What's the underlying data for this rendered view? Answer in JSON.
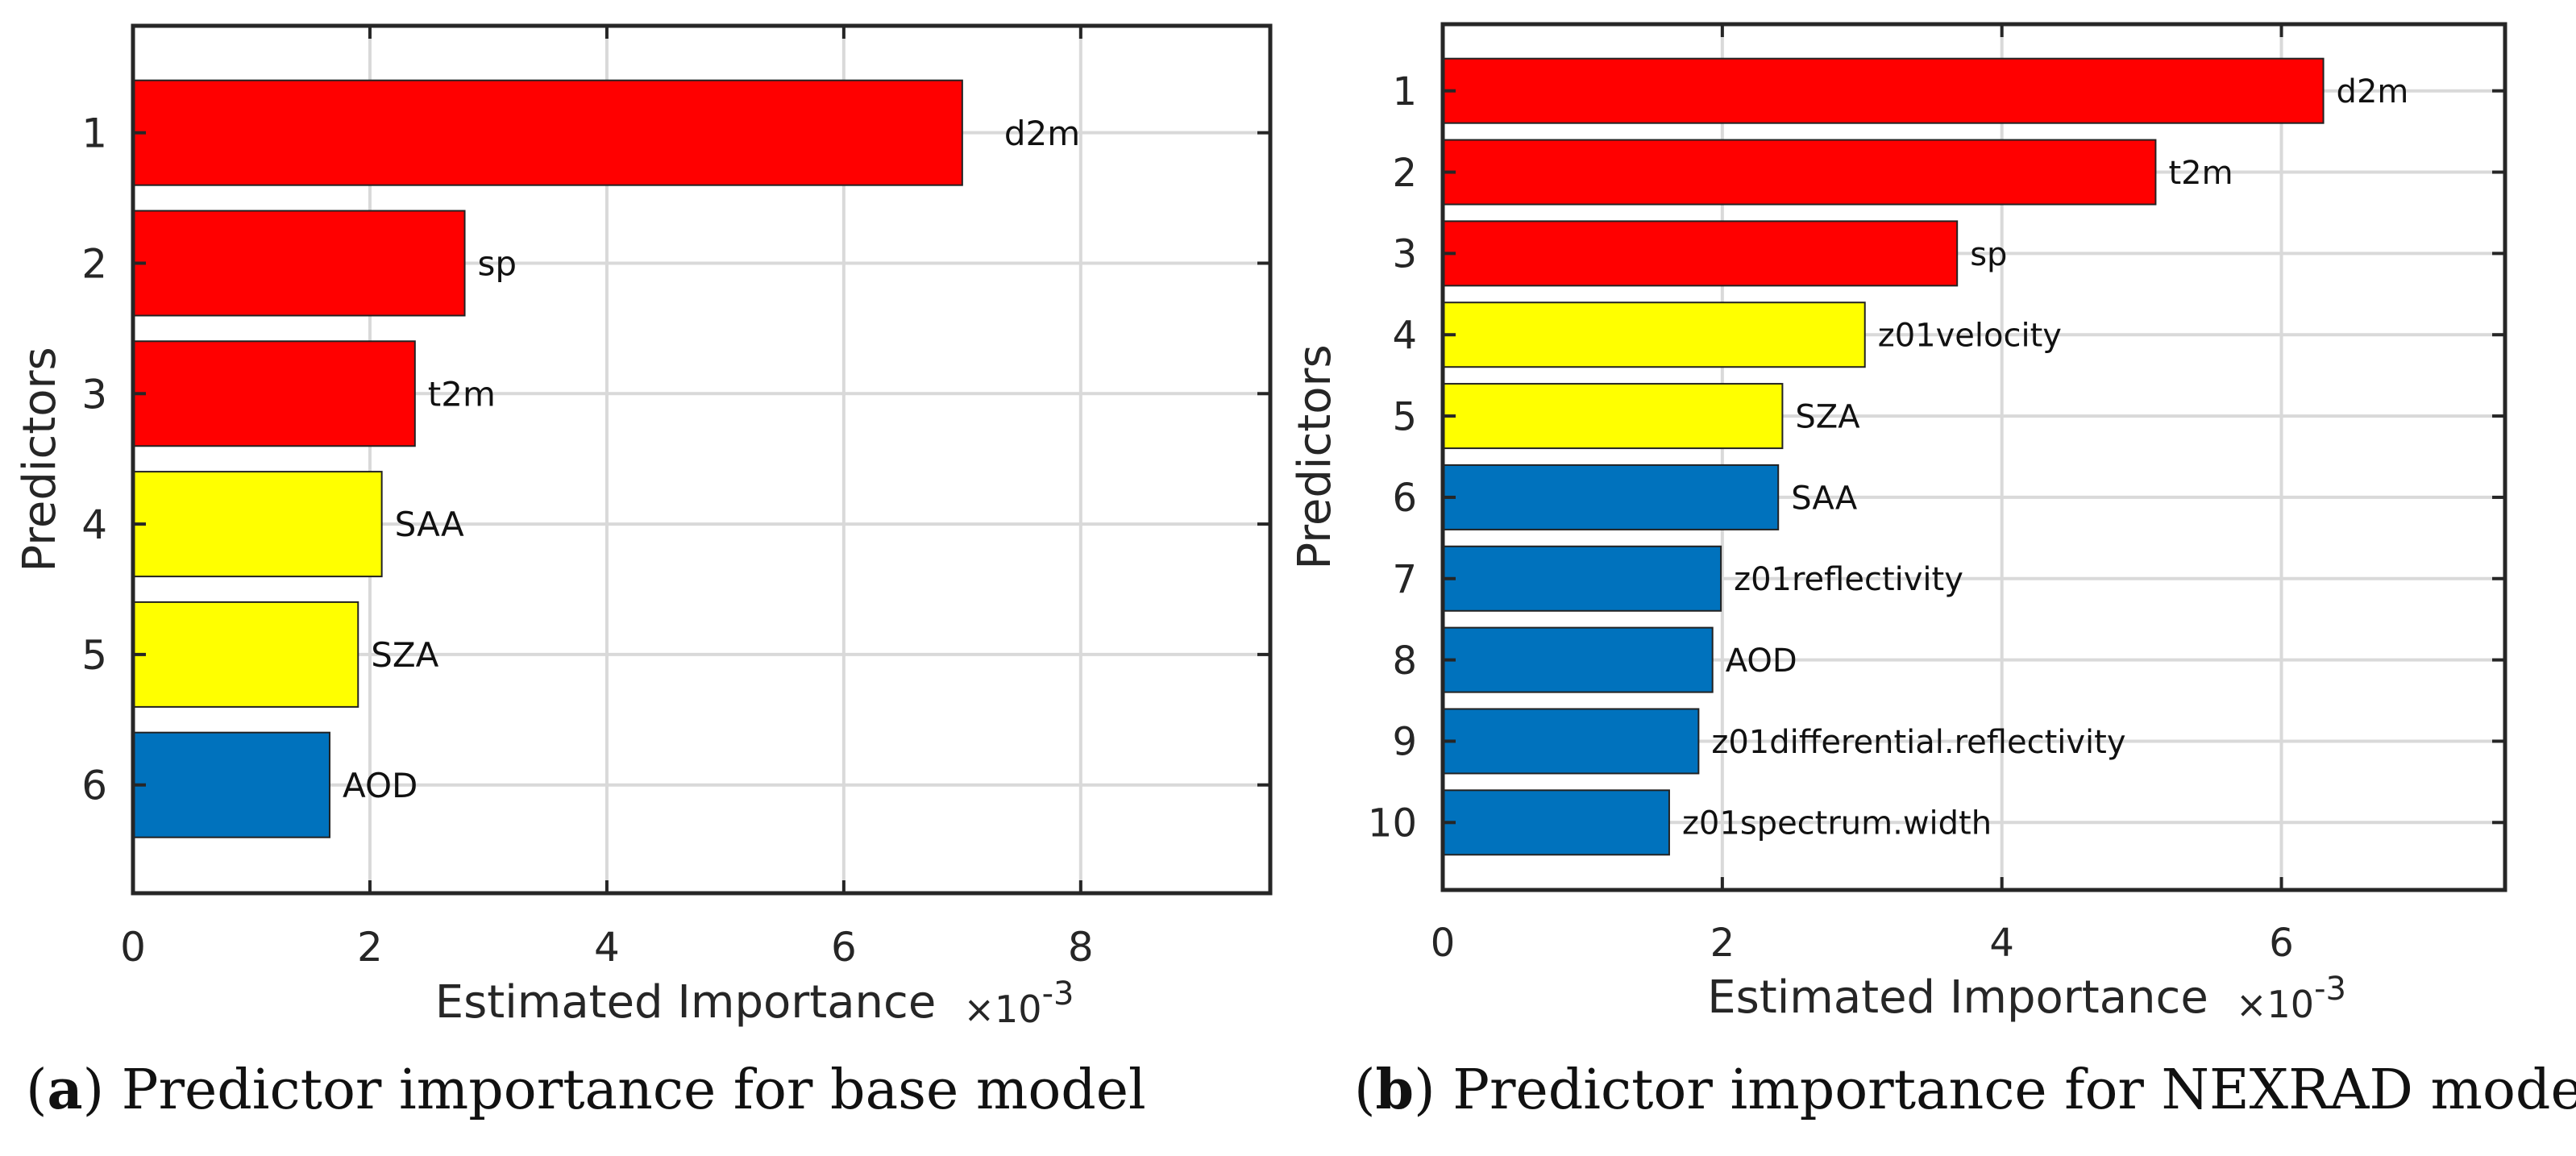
{
  "chart_data": [
    {
      "type": "bar",
      "orientation": "horizontal",
      "title": "",
      "xlabel": "Estimated Importance",
      "x_multiplier": "×10",
      "x_multiplier_exp": "-3",
      "ylabel": "Predictors",
      "xlim": [
        0,
        9.6
      ],
      "xticks": [
        0,
        2,
        4,
        6,
        8
      ],
      "xtick_labels": [
        "0",
        "2",
        "4",
        "6",
        "8"
      ],
      "categories": [
        "1",
        "2",
        "3",
        "4",
        "5",
        "6"
      ],
      "bar_labels": [
        "d2m",
        "sp",
        "t2m",
        "SAA",
        "SZA",
        "AOD"
      ],
      "values": [
        7.0,
        2.8,
        2.38,
        2.1,
        1.9,
        1.66
      ],
      "colors": [
        "#ff0000",
        "#ff0000",
        "#ff0000",
        "#ffff00",
        "#ffff00",
        "#0072bd"
      ],
      "grid": true
    },
    {
      "type": "bar",
      "orientation": "horizontal",
      "title": "",
      "xlabel": "Estimated Importance",
      "x_multiplier": "×10",
      "x_multiplier_exp": "-3",
      "ylabel": "Predictors",
      "xlim": [
        0,
        7.6
      ],
      "xticks": [
        0,
        2,
        4,
        6
      ],
      "xtick_labels": [
        "0",
        "2",
        "4",
        "6"
      ],
      "categories": [
        "1",
        "2",
        "3",
        "4",
        "5",
        "6",
        "7",
        "8",
        "9",
        "10"
      ],
      "bar_labels": [
        "d2m",
        "t2m",
        "sp",
        "z01velocity",
        "SZA",
        "SAA",
        "z01reflectivity",
        "AOD",
        "z01differential.reflectivity",
        "z01spectrum.width"
      ],
      "values": [
        6.3,
        5.1,
        3.68,
        3.02,
        2.43,
        2.4,
        1.99,
        1.93,
        1.83,
        1.62
      ],
      "colors": [
        "#ff0000",
        "#ff0000",
        "#ff0000",
        "#ffff00",
        "#ffff00",
        "#0072bd",
        "#0072bd",
        "#0072bd",
        "#0072bd",
        "#0072bd"
      ],
      "grid": true
    }
  ],
  "captions": [
    {
      "label": "a",
      "text": "Predictor importance for base model"
    },
    {
      "label": "b",
      "text": "Predictor importance for NEXRAD model"
    }
  ]
}
